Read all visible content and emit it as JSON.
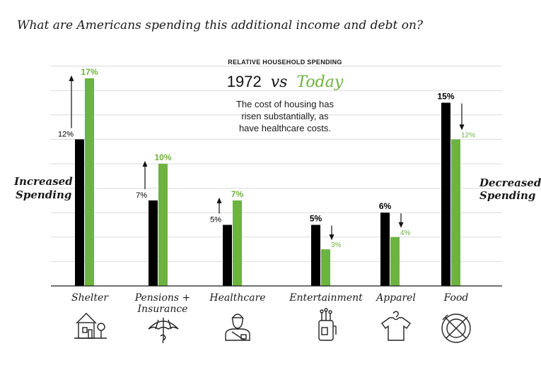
{
  "headline": "What are Americans spending this additional income and debt on?",
  "subtitle": "RELATIVE HOUSEHOLD SPENDING",
  "compare": {
    "year": "1972",
    "vs": "vs",
    "today": "Today"
  },
  "note": [
    "The cost of housing has",
    "risen substantially, as",
    "have healthcare costs."
  ],
  "left_label": [
    "Increased",
    "Spending"
  ],
  "right_label": [
    "Decreased",
    "Spending"
  ],
  "colors": {
    "then": "#000000",
    "today": "#6db33f",
    "grid": "#d9d9d9",
    "text": "#1a1a1a"
  },
  "chart_data": {
    "type": "bar",
    "title": "RELATIVE HOUSEHOLD SPENDING",
    "categories": [
      "Shelter",
      "Pensions + Insurance",
      "Healthcare",
      "Entertainment",
      "Apparel",
      "Food"
    ],
    "category_lines": [
      [
        "Shelter"
      ],
      [
        "Pensions +",
        "Insurance"
      ],
      [
        "Healthcare"
      ],
      [
        "Entertainment"
      ],
      [
        "Apparel"
      ],
      [
        "Food"
      ]
    ],
    "icons": [
      "house-icon",
      "umbrella-icon",
      "doctor-icon",
      "golf-bag-icon",
      "shirt-icon",
      "plate-icon"
    ],
    "series": [
      {
        "name": "1972",
        "values": [
          12,
          7,
          5,
          5,
          6,
          15
        ],
        "labels": [
          "12%",
          "7%",
          "5%",
          "5%",
          "6%",
          "15%"
        ]
      },
      {
        "name": "Today",
        "values": [
          17,
          10,
          7,
          3,
          4,
          12
        ],
        "labels": [
          "17%",
          "10%",
          "7%",
          "3%",
          "4%",
          "12%"
        ]
      }
    ],
    "direction": [
      "up",
      "up",
      "up",
      "down",
      "down",
      "down"
    ],
    "ylim": [
      0,
      17
    ],
    "grid": true,
    "xlabel": "",
    "ylabel": ""
  }
}
